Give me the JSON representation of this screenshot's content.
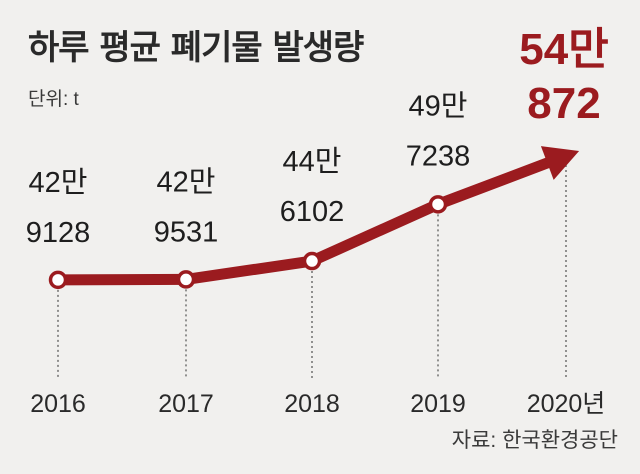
{
  "header": {
    "title": "하루 평균 폐기물 발생량",
    "unit": "단위: t"
  },
  "footer": {
    "source": "자료: 한국환경공단"
  },
  "colors": {
    "line": "#9b1b1f",
    "highlight_text": "#9b1b1f",
    "background": "#f1f0ee"
  },
  "chart_data": {
    "type": "line",
    "title": "하루 평균 폐기물 발생량",
    "unit": "t",
    "categories": [
      "2016",
      "2017",
      "2018",
      "2019",
      "2020년"
    ],
    "values": [
      429128,
      429531,
      446102,
      497238,
      540872
    ],
    "value_labels": [
      [
        "42만",
        "9128"
      ],
      [
        "42만",
        "9531"
      ],
      [
        "44만",
        "6102"
      ],
      [
        "49만",
        "7238"
      ],
      [
        "54만",
        "872"
      ]
    ],
    "highlight_index": 4,
    "last_point_marker": "arrow",
    "grid": false,
    "source": "자료: 한국환경공단"
  }
}
